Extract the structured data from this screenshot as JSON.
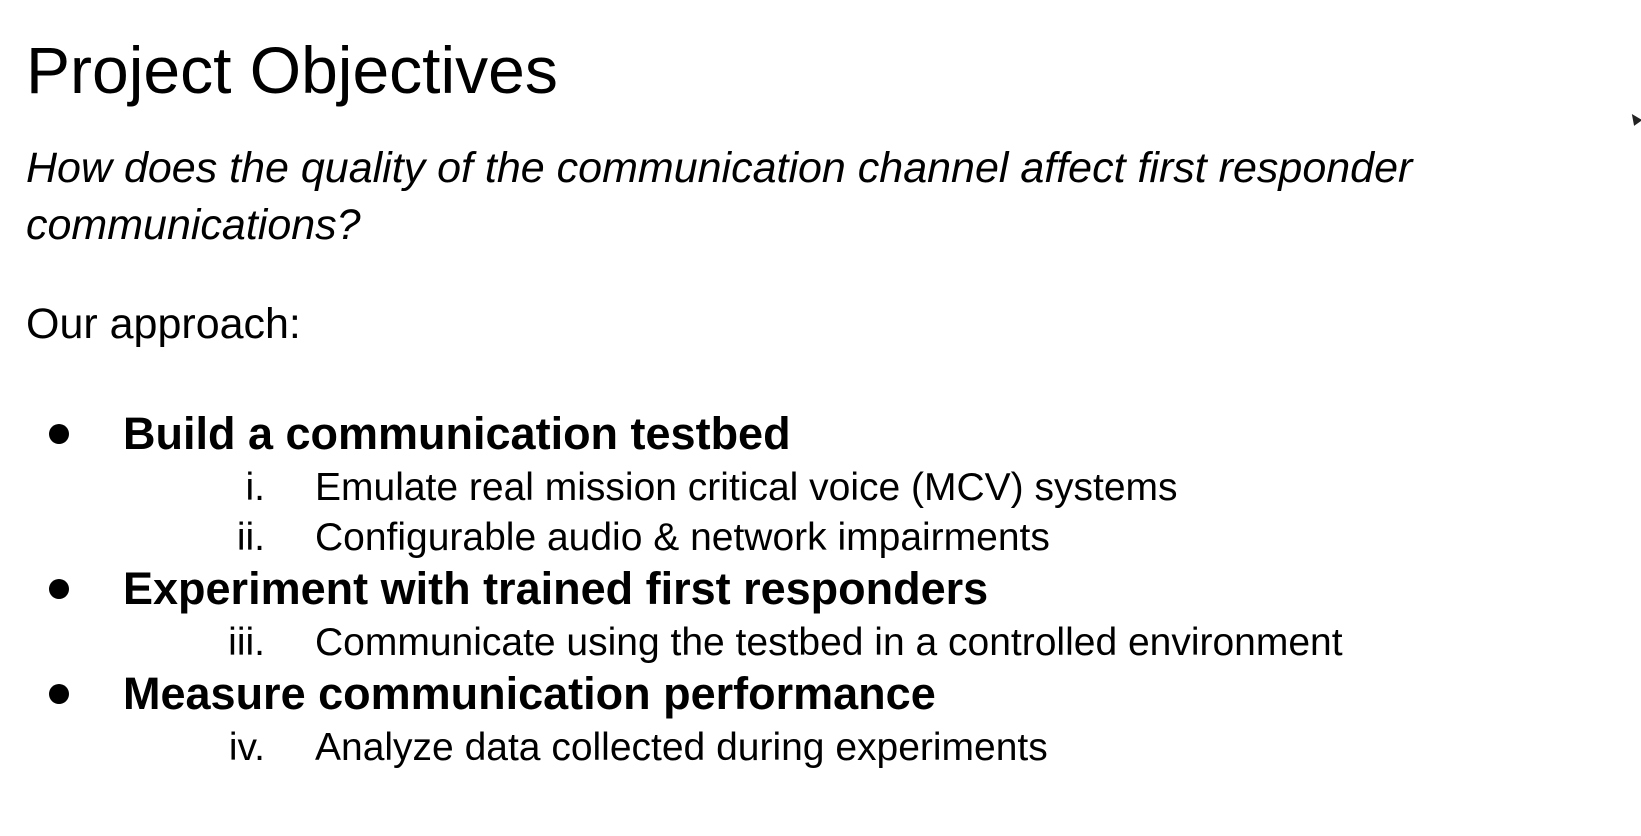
{
  "slide": {
    "title": "Project Objectives",
    "question": "How does the quality of the communication channel affect first responder communications?",
    "approach_label": "Our approach:",
    "bullets": [
      {
        "text": "Build a communication testbed",
        "subitems": [
          {
            "num": "i.",
            "text": "Emulate real mission critical voice (MCV) systems"
          },
          {
            "num": "ii.",
            "text": "Configurable audio & network impairments"
          }
        ]
      },
      {
        "text": "Experiment with trained first responders",
        "subitems": [
          {
            "num": "iii.",
            "text": "Communicate using the testbed in a controlled environment"
          }
        ]
      },
      {
        "text": "Measure communication performance",
        "subitems": [
          {
            "num": "iv.",
            "text": "Analyze data collected during experiments"
          }
        ]
      }
    ]
  },
  "icons": {
    "cursor": "mouse-pointer-icon"
  }
}
